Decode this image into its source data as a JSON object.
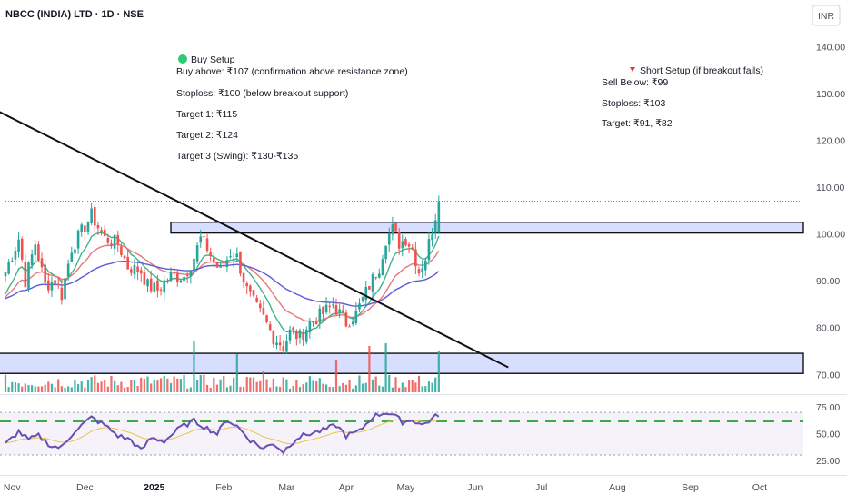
{
  "header": {
    "title": "NBCC (INDIA) LTD · 1D · NSE",
    "currency": "INR"
  },
  "annotations": {
    "buy": {
      "heading": "Buy Setup",
      "lines": [
        "Buy above: ₹107 (confirmation above resistance zone)",
        "Stoploss: ₹100 (below breakout support)",
        "Target 1: ₹115",
        "Target 2: ₹124",
        "Target 3 (Swing): ₹130-₹135"
      ],
      "marker_color": "#2ecc71"
    },
    "short": {
      "heading": "Short Setup (if breakout fails)",
      "lines": [
        "Sell Below: ₹99",
        "Stoploss: ₹103",
        "Target: ₹91, ₹82"
      ],
      "marker_color": "#e53935"
    }
  },
  "colors": {
    "up": "#26a69a",
    "down": "#ef5350",
    "zone_fill": "#c9d3ff",
    "ema_fast": "#40b38a",
    "ema_mid": "#e8787e",
    "ema_slow": "#5b5bd6",
    "rsi_line": "#6a4fb3",
    "rsi_signal": "#e9c44a",
    "rsi_level": "#3daa4a",
    "last_price_line": "#3daa6e"
  },
  "chart_data": {
    "type": "candlestick",
    "price_axis": {
      "ticks": [
        "140.00",
        "130.00",
        "120.00",
        "110.00",
        "100.00",
        "90.00",
        "80.00",
        "70.00"
      ],
      "range": [
        68.5,
        143
      ]
    },
    "rsi_axis": {
      "ticks": [
        "75.00",
        "50.00",
        "25.00"
      ],
      "range": [
        18,
        82
      ],
      "dashed_level": 62,
      "band": [
        30,
        70
      ]
    },
    "x_axis": {
      "labels": [
        {
          "label": "Nov",
          "bar": 2,
          "bold": false
        },
        {
          "label": "Dec",
          "bar": 24,
          "bold": false
        },
        {
          "label": "2025",
          "bar": 45,
          "bold": true
        },
        {
          "label": "Feb",
          "bar": 66,
          "bold": false
        },
        {
          "label": "Mar",
          "bar": 85,
          "bold": false
        },
        {
          "label": "Apr",
          "bar": 103,
          "bold": false
        },
        {
          "label": "May",
          "bar": 121,
          "bold": false
        },
        {
          "label": "Jun",
          "bar": 142,
          "bold": false
        },
        {
          "label": "Jul",
          "bar": 162,
          "bold": false
        },
        {
          "label": "Aug",
          "bar": 185,
          "bold": false
        },
        {
          "label": "Sep",
          "bar": 207,
          "bold": false
        },
        {
          "label": "Oct",
          "bar": 228,
          "bold": false
        }
      ]
    },
    "resistance_zone": [
      100.2,
      102.5
    ],
    "support_zone": [
      70.2,
      74.5
    ],
    "trendline": [
      {
        "bar": -3,
        "price": 126.5
      },
      {
        "bar": 152,
        "price": 71.5
      }
    ],
    "last_price": 107,
    "bars": 132,
    "anchors": [
      [
        0,
        92
      ],
      [
        4,
        99
      ],
      [
        6,
        90
      ],
      [
        9,
        98
      ],
      [
        12,
        89
      ],
      [
        15,
        90
      ],
      [
        17,
        87
      ],
      [
        20,
        97
      ],
      [
        26,
        104
      ],
      [
        30,
        99
      ],
      [
        34,
        98
      ],
      [
        37,
        93
      ],
      [
        41,
        92
      ],
      [
        43,
        89
      ],
      [
        46,
        88
      ],
      [
        50,
        91
      ],
      [
        54,
        91
      ],
      [
        57,
        95
      ],
      [
        59,
        99
      ],
      [
        61,
        97
      ],
      [
        63,
        94
      ],
      [
        65,
        92
      ],
      [
        68,
        96
      ],
      [
        70,
        95
      ],
      [
        73,
        88
      ],
      [
        76,
        84
      ],
      [
        78,
        82
      ],
      [
        81,
        78
      ],
      [
        84,
        76
      ],
      [
        86,
        79
      ],
      [
        89,
        78
      ],
      [
        92,
        81
      ],
      [
        96,
        83
      ],
      [
        99,
        85
      ],
      [
        103,
        81
      ],
      [
        106,
        83
      ],
      [
        110,
        89
      ],
      [
        113,
        93
      ],
      [
        115,
        99
      ],
      [
        117,
        101
      ],
      [
        119,
        98
      ],
      [
        121,
        99
      ],
      [
        123,
        97
      ],
      [
        125,
        92
      ],
      [
        127,
        95
      ],
      [
        129,
        101
      ],
      [
        131,
        107
      ]
    ],
    "volume_spikes": [
      [
        57,
        0.95
      ],
      [
        70,
        0.7
      ],
      [
        78,
        0.4
      ],
      [
        100,
        0.6
      ],
      [
        110,
        0.85
      ],
      [
        115,
        0.9
      ],
      [
        131,
        0.75
      ]
    ],
    "rsi_anchors": [
      [
        0,
        40
      ],
      [
        4,
        52
      ],
      [
        7,
        44
      ],
      [
        10,
        48
      ],
      [
        14,
        38
      ],
      [
        17,
        37
      ],
      [
        21,
        53
      ],
      [
        26,
        65
      ],
      [
        30,
        58
      ],
      [
        34,
        48
      ],
      [
        38,
        44
      ],
      [
        41,
        34
      ],
      [
        44,
        46
      ],
      [
        48,
        43
      ],
      [
        53,
        56
      ],
      [
        57,
        62
      ],
      [
        61,
        55
      ],
      [
        64,
        50
      ],
      [
        67,
        63
      ],
      [
        70,
        57
      ],
      [
        74,
        44
      ],
      [
        78,
        36
      ],
      [
        81,
        41
      ],
      [
        84,
        33
      ],
      [
        88,
        46
      ],
      [
        92,
        50
      ],
      [
        96,
        53
      ],
      [
        100,
        58
      ],
      [
        103,
        48
      ],
      [
        107,
        52
      ],
      [
        111,
        66
      ],
      [
        115,
        70
      ],
      [
        117,
        68
      ],
      [
        120,
        61
      ],
      [
        123,
        63
      ],
      [
        126,
        58
      ],
      [
        129,
        64
      ],
      [
        131,
        68
      ]
    ]
  }
}
